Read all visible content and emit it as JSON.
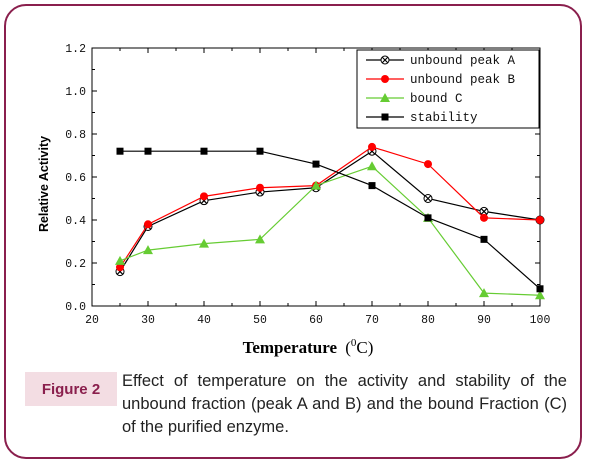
{
  "chart_data": {
    "type": "line",
    "xlabel": "Temperature",
    "xlabel_unit_sup": "0",
    "xlabel_unit": "C",
    "ylabel": "Relative Activity",
    "xlim": [
      20,
      100
    ],
    "ylim": [
      0.0,
      1.2
    ],
    "xticks": [
      "20",
      "30",
      "40",
      "50",
      "60",
      "70",
      "80",
      "90",
      "100"
    ],
    "yticks": [
      "0.0",
      "0.2",
      "0.4",
      "0.6",
      "0.8",
      "1.0",
      "1.2"
    ],
    "legend_position": "top-right",
    "grid": false,
    "series": [
      {
        "name": "unbound peak A",
        "color": "#000000",
        "marker": "x-circle",
        "x": [
          25,
          30,
          40,
          50,
          60,
          70,
          80,
          90,
          100
        ],
        "y": [
          0.16,
          0.37,
          0.49,
          0.53,
          0.55,
          0.72,
          0.5,
          0.44,
          0.4
        ]
      },
      {
        "name": "unbound peak B",
        "color": "#ff0000",
        "marker": "circle",
        "x": [
          25,
          30,
          40,
          50,
          60,
          70,
          80,
          90,
          100
        ],
        "y": [
          0.18,
          0.38,
          0.51,
          0.55,
          0.56,
          0.74,
          0.66,
          0.41,
          0.4
        ]
      },
      {
        "name": "bound C",
        "color": "#66cc33",
        "marker": "triangle",
        "x": [
          25,
          30,
          40,
          50,
          60,
          70,
          80,
          90,
          100
        ],
        "y": [
          0.21,
          0.26,
          0.29,
          0.31,
          0.56,
          0.65,
          0.41,
          0.06,
          0.05
        ]
      },
      {
        "name": "stability",
        "color": "#000000",
        "marker": "square",
        "x": [
          25,
          30,
          40,
          50,
          60,
          70,
          80,
          90,
          100
        ],
        "y": [
          0.72,
          0.72,
          0.72,
          0.72,
          0.66,
          0.56,
          0.41,
          0.31,
          0.08
        ]
      }
    ]
  },
  "caption": {
    "label": "Figure 2",
    "text": "Effect of temperature on the activity and stability of the unbound fraction (peak A and B) and the bound Fraction (C) of the purified enzyme."
  },
  "colors": {
    "frame_border": "#8a1f4d",
    "label_background": "#f3dde3",
    "label_text": "#8a1f4d"
  }
}
